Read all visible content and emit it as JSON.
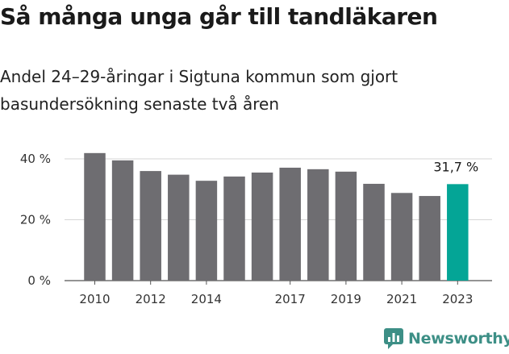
{
  "title": "Så många unga går till tandläkaren",
  "subtitle": "Andel 24–29-åringar i Sigtuna kommun som gjort basundersökning senaste två åren",
  "brand": "Newsworthy",
  "colors": {
    "bar": "#6e6d71",
    "highlight": "#04a596",
    "brand": "#3d8f86"
  },
  "chart_data": {
    "type": "bar",
    "categories": [
      "2010",
      "2011",
      "2012",
      "2013",
      "2014",
      "2015",
      "2016",
      "2017",
      "2018",
      "2019",
      "2020",
      "2021",
      "2022",
      "2023"
    ],
    "values": [
      41.9,
      39.5,
      36.0,
      34.8,
      32.8,
      34.2,
      35.5,
      37.1,
      36.6,
      35.8,
      31.8,
      28.8,
      27.8,
      31.7
    ],
    "tick_labels_shown": [
      "2010",
      "2012",
      "2014",
      "2017",
      "2019",
      "2021",
      "2023"
    ],
    "highlight_label": "31,7 %",
    "y_ticks": [
      "0 %",
      "20 %",
      "40 %"
    ],
    "y_tick_values": [
      0,
      20,
      40
    ],
    "ylim": [
      0,
      40
    ],
    "xlabel": "",
    "ylabel": "",
    "grid": true,
    "legend": "none"
  }
}
